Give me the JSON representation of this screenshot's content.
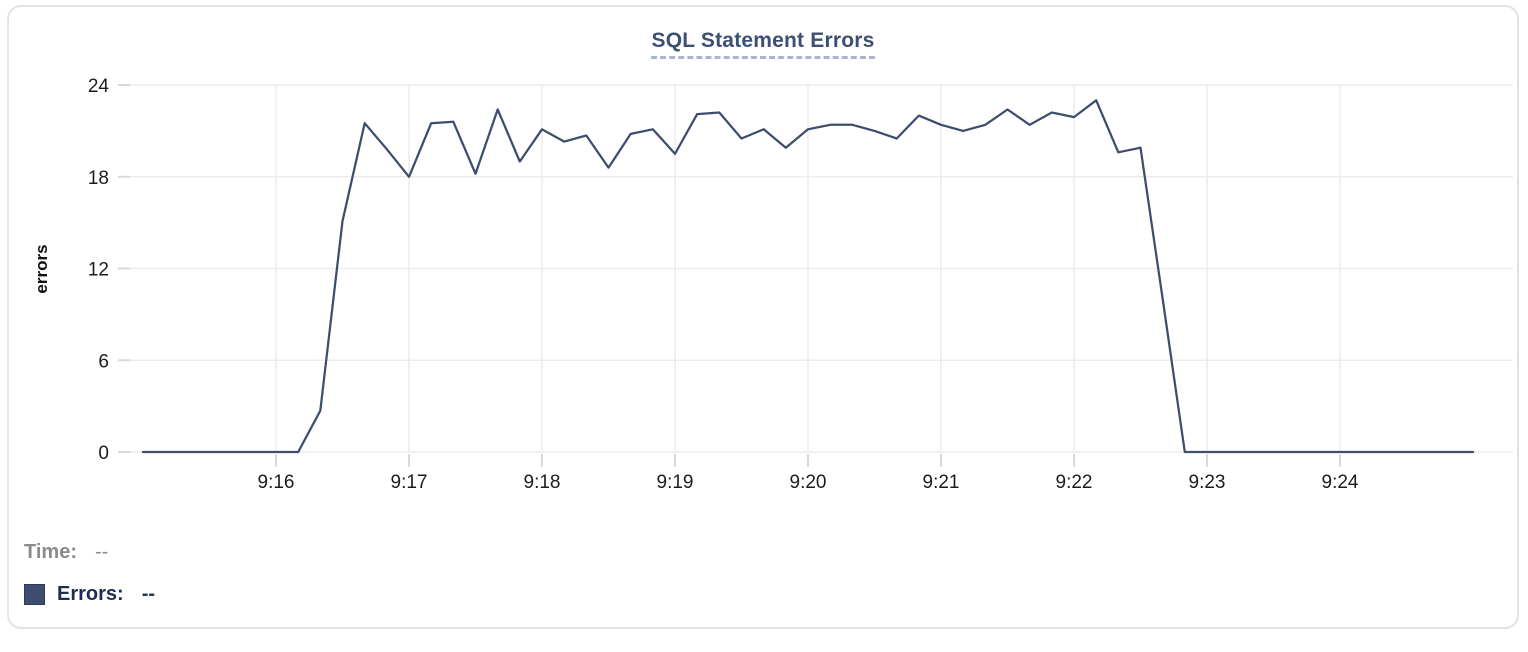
{
  "page": {
    "background": "#ffffff"
  },
  "card": {
    "background": "#ffffff",
    "border_color": "#e2e2e2"
  },
  "chart_data": {
    "type": "line",
    "title": "SQL Statement Errors",
    "xlabel": "",
    "ylabel": "errors",
    "ylim": [
      0,
      24
    ],
    "y_ticks": [
      0,
      6,
      12,
      18,
      24
    ],
    "x_ticks": [
      "9:16",
      "9:17",
      "9:18",
      "9:19",
      "9:20",
      "9:21",
      "9:22",
      "9:23",
      "9:24"
    ],
    "x_range": [
      "9:15:00",
      "9:25:00"
    ],
    "grid": true,
    "legend_position": "bottom-left",
    "title_color": "#3b5073",
    "title_underline_color": "#a9b4cf",
    "grid_color": "#ececec",
    "tick_color": "#d9d9d9",
    "axis_label_color": "#1c1c1c",
    "series": [
      {
        "name": "Errors",
        "color": "#3e4d6e",
        "points": [
          [
            "9:15:00",
            0
          ],
          [
            "9:15:10",
            0
          ],
          [
            "9:15:20",
            0
          ],
          [
            "9:15:30",
            0
          ],
          [
            "9:15:40",
            0
          ],
          [
            "9:15:50",
            0
          ],
          [
            "9:16:00",
            0
          ],
          [
            "9:16:10",
            0
          ],
          [
            "9:16:20",
            2.7
          ],
          [
            "9:16:30",
            15.1
          ],
          [
            "9:16:40",
            21.5
          ],
          [
            "9:16:50",
            19.8
          ],
          [
            "9:17:00",
            18
          ],
          [
            "9:17:10",
            21.5
          ],
          [
            "9:17:20",
            21.6
          ],
          [
            "9:17:30",
            18.2
          ],
          [
            "9:17:40",
            22.4
          ],
          [
            "9:17:50",
            19
          ],
          [
            "9:18:00",
            21.1
          ],
          [
            "9:18:10",
            20.3
          ],
          [
            "9:18:20",
            20.7
          ],
          [
            "9:18:30",
            18.6
          ],
          [
            "9:18:40",
            20.8
          ],
          [
            "9:18:50",
            21.1
          ],
          [
            "9:19:00",
            19.5
          ],
          [
            "9:19:10",
            22.1
          ],
          [
            "9:19:20",
            22.2
          ],
          [
            "9:19:30",
            20.5
          ],
          [
            "9:19:40",
            21.1
          ],
          [
            "9:19:50",
            19.9
          ],
          [
            "9:20:00",
            21.1
          ],
          [
            "9:20:10",
            21.4
          ],
          [
            "9:20:20",
            21.4
          ],
          [
            "9:20:30",
            21
          ],
          [
            "9:20:40",
            20.5
          ],
          [
            "9:20:50",
            22
          ],
          [
            "9:21:00",
            21.4
          ],
          [
            "9:21:10",
            21
          ],
          [
            "9:21:20",
            21.4
          ],
          [
            "9:21:30",
            22.4
          ],
          [
            "9:21:40",
            21.4
          ],
          [
            "9:21:50",
            22.2
          ],
          [
            "9:22:00",
            21.9
          ],
          [
            "9:22:10",
            23
          ],
          [
            "9:22:20",
            19.6
          ],
          [
            "9:22:30",
            19.9
          ],
          [
            "9:22:40",
            10
          ],
          [
            "9:22:50",
            0
          ],
          [
            "9:23:00",
            0
          ],
          [
            "9:23:10",
            0
          ],
          [
            "9:23:20",
            0
          ],
          [
            "9:23:30",
            0
          ],
          [
            "9:23:40",
            0
          ],
          [
            "9:23:50",
            0
          ],
          [
            "9:24:00",
            0
          ],
          [
            "9:24:10",
            0
          ],
          [
            "9:24:20",
            0
          ],
          [
            "9:24:30",
            0
          ],
          [
            "9:24:40",
            0
          ],
          [
            "9:24:50",
            0
          ],
          [
            "9:25:00",
            0
          ]
        ]
      }
    ]
  },
  "legend": {
    "time": {
      "label": "Time:",
      "value": "--"
    },
    "errors": {
      "label": "Errors:",
      "value": "--",
      "swatch_color": "#3e4d6e"
    }
  }
}
